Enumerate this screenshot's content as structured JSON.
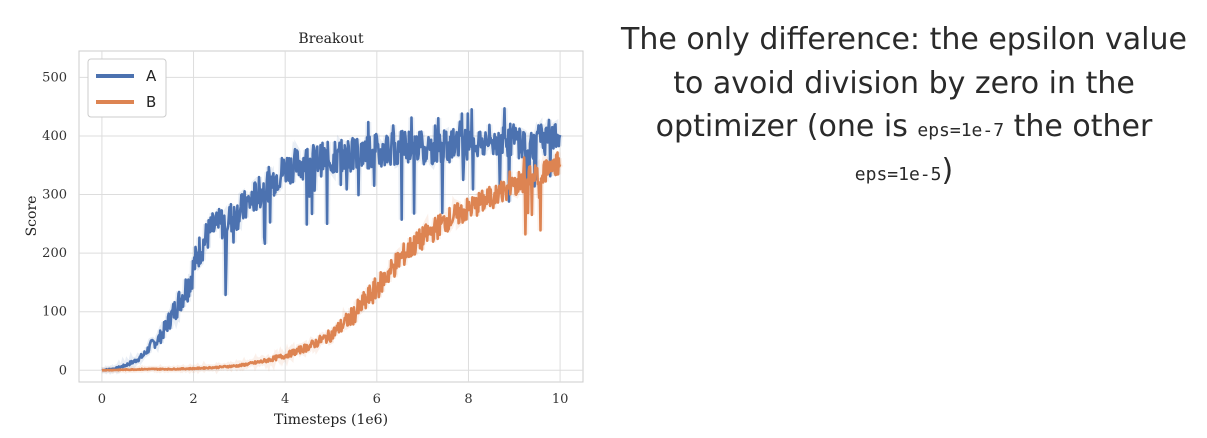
{
  "chart_data": {
    "type": "line",
    "title": "Breakout",
    "xlabel": "Timesteps (1e6)",
    "ylabel": "Score",
    "xlim": [
      -0.5,
      10.5
    ],
    "ylim": [
      -20,
      545
    ],
    "xticks": [
      0,
      2,
      4,
      6,
      8,
      10
    ],
    "yticks": [
      0,
      100,
      200,
      300,
      400,
      500
    ],
    "grid": true,
    "legend": "top-left",
    "series": [
      {
        "name": "A",
        "color": "#4c72b0",
        "x": [
          0,
          0.3,
          0.5,
          0.7,
          0.9,
          1.0,
          1.1,
          1.2,
          1.3,
          1.4,
          1.5,
          1.6,
          1.7,
          1.8,
          1.9,
          2.0,
          2.1,
          2.2,
          2.3,
          2.4,
          2.5,
          2.6,
          2.7,
          2.8,
          2.9,
          3.0,
          3.2,
          3.4,
          3.6,
          3.8,
          4.0,
          4.2,
          4.4,
          4.6,
          4.8,
          5.0,
          5.2,
          5.4,
          5.6,
          5.8,
          6.0,
          6.2,
          6.4,
          6.6,
          6.8,
          7.0,
          7.2,
          7.4,
          7.6,
          7.8,
          8.0,
          8.2,
          8.4,
          8.6,
          8.8,
          9.0,
          9.2,
          9.4,
          9.6,
          9.8,
          10.0
        ],
        "y": [
          0,
          3,
          8,
          15,
          25,
          35,
          45,
          50,
          60,
          75,
          90,
          105,
          120,
          135,
          150,
          175,
          200,
          215,
          230,
          240,
          245,
          250,
          255,
          260,
          265,
          270,
          285,
          300,
          315,
          330,
          345,
          350,
          355,
          358,
          360,
          362,
          365,
          368,
          370,
          372,
          375,
          378,
          380,
          382,
          385,
          380,
          378,
          380,
          383,
          385,
          385,
          388,
          390,
          392,
          395,
          392,
          390,
          388,
          395,
          400,
          390
        ]
      },
      {
        "name": "B",
        "color": "#dd8452",
        "x": [
          0,
          0.5,
          1.0,
          1.5,
          2.0,
          2.5,
          3.0,
          3.5,
          4.0,
          4.5,
          5.0,
          5.5,
          6.0,
          6.25,
          6.5,
          6.75,
          7.0,
          7.25,
          7.5,
          7.75,
          8.0,
          8.25,
          8.5,
          8.75,
          9.0,
          9.25,
          9.5,
          9.75,
          10.0
        ],
        "y": [
          0,
          1,
          2,
          2,
          3,
          5,
          8,
          15,
          25,
          40,
          60,
          95,
          140,
          165,
          190,
          210,
          225,
          240,
          255,
          265,
          275,
          285,
          295,
          305,
          315,
          325,
          335,
          345,
          355
        ]
      }
    ]
  },
  "caption": {
    "line1": "The only difference: the epsilon value",
    "line2": "to avoid division by zero in the",
    "line3_pre": "optimizer (one is ",
    "code1": "eps=1e-7",
    "line3_post": " the other",
    "code2": "eps=1e-5",
    "line4_post": ")"
  }
}
